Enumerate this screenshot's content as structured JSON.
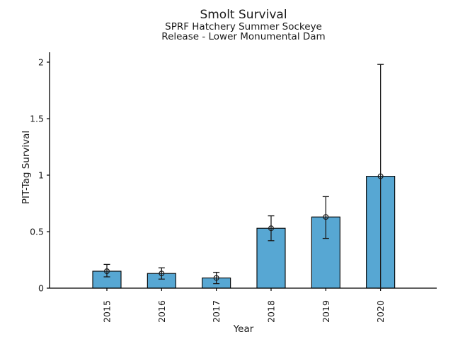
{
  "figure": {
    "background": "#ffffff",
    "text_color": "#1a1a1a"
  },
  "chart_data": {
    "type": "bar",
    "title": "Smolt Survival",
    "subtitle": [
      "SPRF Hatchery Summer Sockeye",
      "Release - Lower Monumental Dam"
    ],
    "xlabel": "Year",
    "ylabel": "PIT-Tag Survival",
    "categories": [
      "2015",
      "2016",
      "2017",
      "2018",
      "2019",
      "2020"
    ],
    "values": [
      0.15,
      0.13,
      0.09,
      0.53,
      0.63,
      0.99
    ],
    "error_low": [
      0.1,
      0.08,
      0.04,
      0.42,
      0.44,
      0.0
    ],
    "error_high": [
      0.21,
      0.18,
      0.14,
      0.64,
      0.81,
      1.98
    ],
    "yticks": [
      0,
      0.5,
      1,
      1.5,
      2
    ],
    "ytick_labels": [
      "0",
      "0.5",
      "1",
      "1.5",
      "2"
    ],
    "ylim": [
      0,
      2.09
    ],
    "grid": false,
    "legend": null,
    "marker": "open-circle",
    "bar_color": "#57A7D3",
    "bar_edge_color": "#000000",
    "error_color": "#1a1a1a",
    "axis_color": "#000000"
  }
}
